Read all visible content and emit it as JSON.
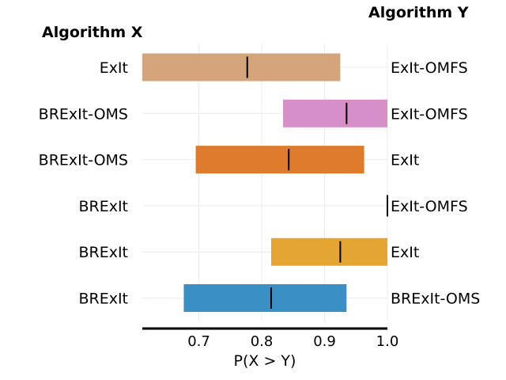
{
  "chart_data": {
    "type": "bar",
    "orientation": "horizontal",
    "title_left": "Algorithm X",
    "title_right": "Algorithm Y",
    "xlabel": "P(X > Y)",
    "xlim": [
      0.61,
      1.0
    ],
    "xticks": [
      "0.7",
      "0.8",
      "0.9",
      "1.0"
    ],
    "xtick_values": [
      0.7,
      0.8,
      0.9,
      1.0
    ],
    "grid": true,
    "rows": [
      {
        "x_algorithm": "ExIt",
        "y_algorithm": "ExIt-OMFS",
        "low": 0.61,
        "high": 0.925,
        "estimate": 0.777,
        "color": "#d4a47a"
      },
      {
        "x_algorithm": "BRExIt-OMS",
        "y_algorithm": "ExIt-OMFS",
        "low": 0.834,
        "high": 1.0,
        "estimate": 0.935,
        "color": "#d68fc9"
      },
      {
        "x_algorithm": "BRExIt-OMS",
        "y_algorithm": "ExIt",
        "low": 0.695,
        "high": 0.963,
        "estimate": 0.843,
        "color": "#de7b2c"
      },
      {
        "x_algorithm": "BRExIt",
        "y_algorithm": "ExIt-OMFS",
        "low": 1.0,
        "high": 1.0,
        "estimate": 1.0,
        "color": "#9aa7ad"
      },
      {
        "x_algorithm": "BRExIt",
        "y_algorithm": "ExIt",
        "low": 0.815,
        "high": 1.0,
        "estimate": 0.925,
        "color": "#e4a532"
      },
      {
        "x_algorithm": "BRExIt",
        "y_algorithm": "BRExIt-OMS",
        "low": 0.676,
        "high": 0.935,
        "estimate": 0.815,
        "color": "#3a90c5"
      }
    ]
  }
}
